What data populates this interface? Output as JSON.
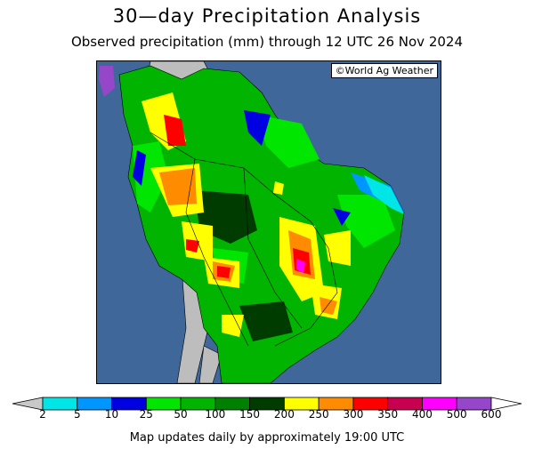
{
  "title": "30—day Precipitation Analysis",
  "subtitle": "Observed precipitation (mm) through 12 UTC 26 Nov 2024",
  "credit": "©World Ag Weather",
  "footer": "Map updates daily by approximately 19:00 UTC",
  "colors": {
    "ocean": "#40679a",
    "no_data_land": "#bdbdbd"
  },
  "legend": {
    "unit": "mm",
    "under_color": "#c8c8c8",
    "over_color": "#ffffff",
    "bins": [
      {
        "label": "2",
        "color": "#00e5e5"
      },
      {
        "label": "5",
        "color": "#0096ff"
      },
      {
        "label": "10",
        "color": "#0000e0"
      },
      {
        "label": "25",
        "color": "#00e600"
      },
      {
        "label": "50",
        "color": "#00b400"
      },
      {
        "label": "100",
        "color": "#008000"
      },
      {
        "label": "150",
        "color": "#003c00"
      },
      {
        "label": "200",
        "color": "#ffff00"
      },
      {
        "label": "250",
        "color": "#ff8c00"
      },
      {
        "label": "300",
        "color": "#ff0000"
      },
      {
        "label": "350",
        "color": "#c80050"
      },
      {
        "label": "400",
        "color": "#ff00ff"
      },
      {
        "label": "500",
        "color": "#9646c8"
      },
      {
        "label": "600",
        "color": null
      }
    ]
  }
}
